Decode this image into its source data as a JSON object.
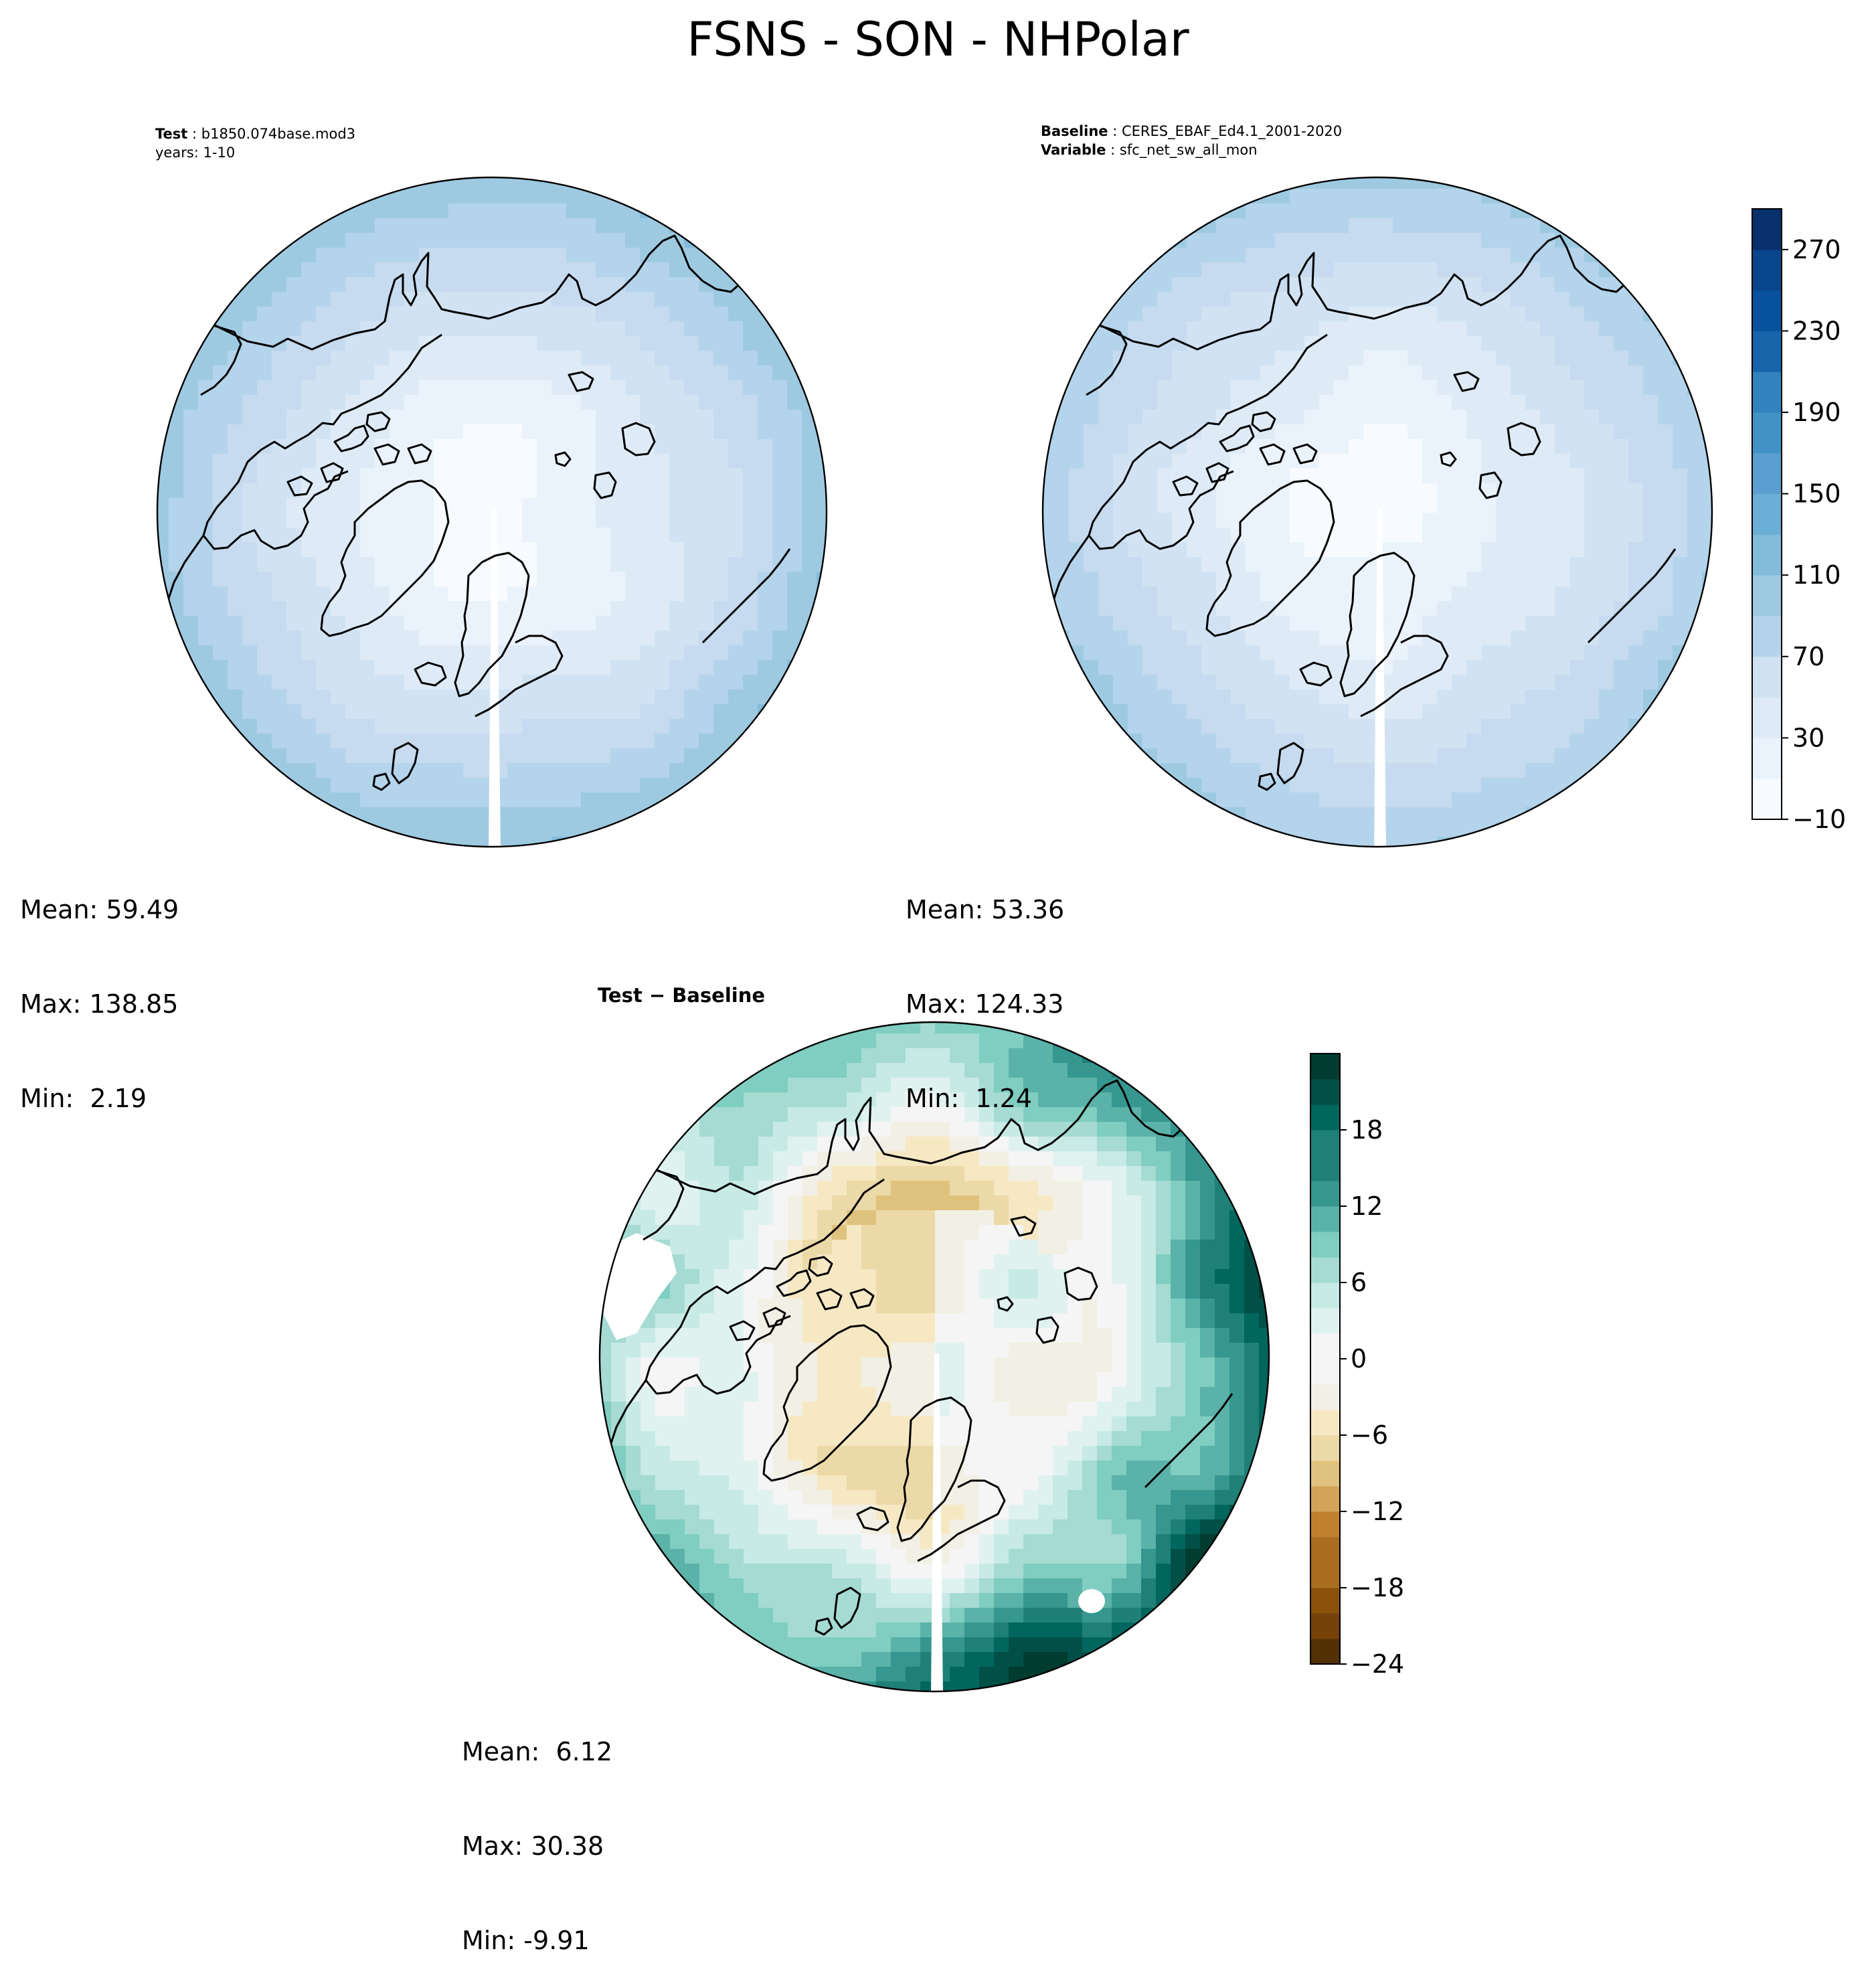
{
  "title": "FSNS - SON - NHPolar",
  "test_panel": {
    "label_bold": "Test",
    "label_value": "b1850.074base.mod3",
    "years": "years: 1-10",
    "stats": {
      "mean": "Mean: 59.49",
      "max": "Max: 138.85",
      "min": "Min:  2.19"
    }
  },
  "baseline_panel": {
    "label_bold": "Baseline",
    "label_value": "CERES_EBAF_Ed4.1_2001-2020",
    "variable_bold": "Variable",
    "variable_value": "sfc_net_sw_all_mon",
    "stats": {
      "mean": "Mean: 53.36",
      "max": "Max: 124.33",
      "min": "Min:  1.24"
    }
  },
  "diff_panel": {
    "title": "Test − Baseline",
    "stats": {
      "mean": "Mean:  6.12",
      "max": "Max: 30.38",
      "min": "Min: -9.91"
    }
  },
  "colors": {
    "blues": [
      "#f7fbff",
      "#eaf3fb",
      "#deebf7",
      "#d1e3f3",
      "#c6dbef",
      "#b4d4eb",
      "#9ecae1",
      "#83bbdb",
      "#6baed6",
      "#5a9fcf",
      "#4292c6",
      "#3282be",
      "#2171b5",
      "#1764ab",
      "#08519c",
      "#08458a",
      "#08306b"
    ],
    "brbg": [
      "#543005",
      "#754209",
      "#8c510a",
      "#a96d1f",
      "#bf812d",
      "#d2a458",
      "#dfc27d",
      "#ecd9a8",
      "#f6e8c3",
      "#f2f0e4",
      "#f5f5f5",
      "#e0f2ef",
      "#c7eae5",
      "#a5dbd2",
      "#80cdc1",
      "#5ab2a8",
      "#35978f",
      "#1f8078",
      "#01665e",
      "#015047",
      "#003c30"
    ],
    "coastline": "#000000"
  },
  "chart_data": [
    {
      "type": "heatmap",
      "projection": "north-polar-stereographic",
      "title": "Test: b1850.074base.mod3",
      "colormap": "Blues",
      "levels": [
        -10,
        10,
        30,
        50,
        70,
        90,
        110,
        130,
        150,
        170,
        190,
        210,
        230,
        250,
        270,
        290
      ],
      "mean": 59.49,
      "max": 138.85,
      "min": 2.19
    },
    {
      "type": "heatmap",
      "projection": "north-polar-stereographic",
      "title": "Baseline: CERES_EBAF_Ed4.1_2001-2020",
      "colormap": "Blues",
      "levels": [
        -10,
        10,
        30,
        50,
        70,
        90,
        110,
        130,
        150,
        170,
        190,
        210,
        230,
        250,
        270,
        290
      ],
      "colorbar_ticks": [
        -10,
        30,
        70,
        110,
        150,
        190,
        230,
        270
      ],
      "mean": 53.36,
      "max": 124.33,
      "min": 1.24
    },
    {
      "type": "heatmap",
      "projection": "north-polar-stereographic",
      "title": "Test − Baseline",
      "colormap": "BrBG",
      "levels": [
        -24,
        -22,
        -20,
        -18,
        -16,
        -14,
        -12,
        -10,
        -8,
        -6,
        -4,
        -2,
        0,
        2,
        4,
        6,
        8,
        10,
        12,
        14,
        16,
        18,
        20,
        22
      ],
      "colorbar_ticks": [
        -24,
        -18,
        -12,
        -6,
        0,
        6,
        12,
        18
      ],
      "mean": 6.12,
      "max": 30.38,
      "min": -9.91
    }
  ]
}
